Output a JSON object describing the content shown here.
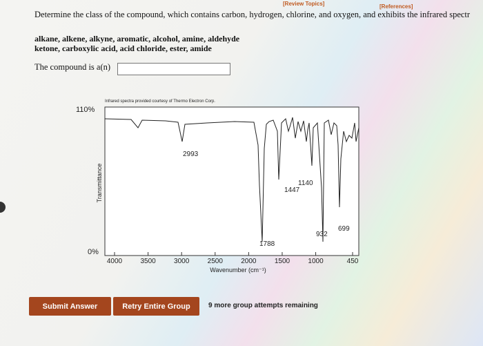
{
  "header": {
    "review_topics": "[Review Topics]",
    "references": "[References]"
  },
  "question": {
    "text": "Determine the class of the compound, which contains carbon, hydrogen, chlorine, and oxygen, and exhibits the infrared spectr",
    "options_line1": "alkane, alkene, alkyne, aromatic, alcohol, amine, aldehyde",
    "options_line2": "ketone, carboxylic acid, acid chloride, ester, amide",
    "prompt": "The compound is a(n)"
  },
  "spectrum": {
    "credit": "Infrared spectra provided courtesy of Thermo Electron Corp.",
    "y_top_label": "110%",
    "y_bottom_label": "0%",
    "y_axis_label": "Transmittance",
    "x_axis_label": "Wavenumber (cm⁻¹)",
    "x_ticks": [
      4000,
      3500,
      3000,
      2500,
      2000,
      1500,
      1000,
      450
    ],
    "peak_labels": [
      2993,
      1447,
      1140,
      1788,
      932,
      699
    ]
  },
  "footer": {
    "submit": "Submit Answer",
    "retry": "Retry Entire Group",
    "attempts": "9 more group attempts remaining"
  }
}
